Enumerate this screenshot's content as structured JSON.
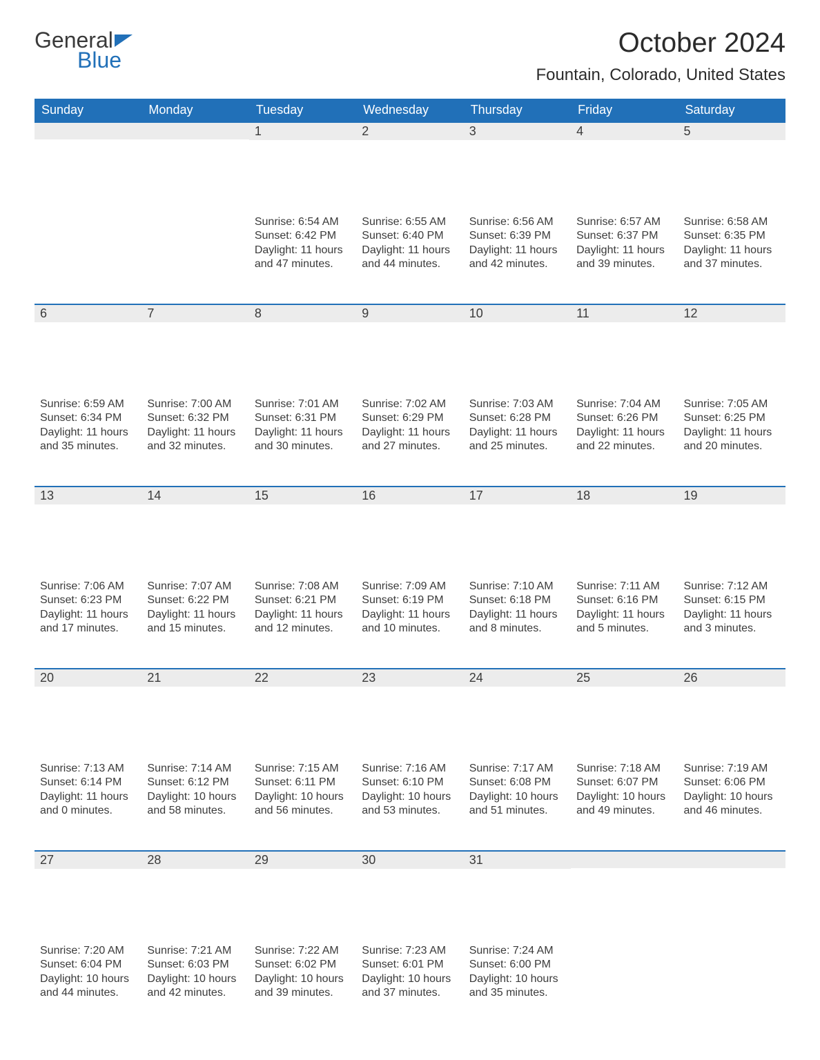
{
  "brand": {
    "word1": "General",
    "word2": "Blue"
  },
  "title": "October 2024",
  "location": "Fountain, Colorado, United States",
  "colors": {
    "header_bg": "#2170b8",
    "header_text": "#ffffff",
    "daynum_bg": "#ececec",
    "row_border": "#2170b8",
    "body_text": "#3a3a3a",
    "page_bg": "#ffffff"
  },
  "fonts": {
    "title_size": 40,
    "location_size": 24,
    "header_size": 18,
    "body_size": 16
  },
  "calendar": {
    "type": "table",
    "columns": [
      "Sunday",
      "Monday",
      "Tuesday",
      "Wednesday",
      "Thursday",
      "Friday",
      "Saturday"
    ],
    "weeks": [
      [
        null,
        null,
        {
          "day": "1",
          "sunrise": "6:54 AM",
          "sunset": "6:42 PM",
          "daylight": "11 hours and 47 minutes."
        },
        {
          "day": "2",
          "sunrise": "6:55 AM",
          "sunset": "6:40 PM",
          "daylight": "11 hours and 44 minutes."
        },
        {
          "day": "3",
          "sunrise": "6:56 AM",
          "sunset": "6:39 PM",
          "daylight": "11 hours and 42 minutes."
        },
        {
          "day": "4",
          "sunrise": "6:57 AM",
          "sunset": "6:37 PM",
          "daylight": "11 hours and 39 minutes."
        },
        {
          "day": "5",
          "sunrise": "6:58 AM",
          "sunset": "6:35 PM",
          "daylight": "11 hours and 37 minutes."
        }
      ],
      [
        {
          "day": "6",
          "sunrise": "6:59 AM",
          "sunset": "6:34 PM",
          "daylight": "11 hours and 35 minutes."
        },
        {
          "day": "7",
          "sunrise": "7:00 AM",
          "sunset": "6:32 PM",
          "daylight": "11 hours and 32 minutes."
        },
        {
          "day": "8",
          "sunrise": "7:01 AM",
          "sunset": "6:31 PM",
          "daylight": "11 hours and 30 minutes."
        },
        {
          "day": "9",
          "sunrise": "7:02 AM",
          "sunset": "6:29 PM",
          "daylight": "11 hours and 27 minutes."
        },
        {
          "day": "10",
          "sunrise": "7:03 AM",
          "sunset": "6:28 PM",
          "daylight": "11 hours and 25 minutes."
        },
        {
          "day": "11",
          "sunrise": "7:04 AM",
          "sunset": "6:26 PM",
          "daylight": "11 hours and 22 minutes."
        },
        {
          "day": "12",
          "sunrise": "7:05 AM",
          "sunset": "6:25 PM",
          "daylight": "11 hours and 20 minutes."
        }
      ],
      [
        {
          "day": "13",
          "sunrise": "7:06 AM",
          "sunset": "6:23 PM",
          "daylight": "11 hours and 17 minutes."
        },
        {
          "day": "14",
          "sunrise": "7:07 AM",
          "sunset": "6:22 PM",
          "daylight": "11 hours and 15 minutes."
        },
        {
          "day": "15",
          "sunrise": "7:08 AM",
          "sunset": "6:21 PM",
          "daylight": "11 hours and 12 minutes."
        },
        {
          "day": "16",
          "sunrise": "7:09 AM",
          "sunset": "6:19 PM",
          "daylight": "11 hours and 10 minutes."
        },
        {
          "day": "17",
          "sunrise": "7:10 AM",
          "sunset": "6:18 PM",
          "daylight": "11 hours and 8 minutes."
        },
        {
          "day": "18",
          "sunrise": "7:11 AM",
          "sunset": "6:16 PM",
          "daylight": "11 hours and 5 minutes."
        },
        {
          "day": "19",
          "sunrise": "7:12 AM",
          "sunset": "6:15 PM",
          "daylight": "11 hours and 3 minutes."
        }
      ],
      [
        {
          "day": "20",
          "sunrise": "7:13 AM",
          "sunset": "6:14 PM",
          "daylight": "11 hours and 0 minutes."
        },
        {
          "day": "21",
          "sunrise": "7:14 AM",
          "sunset": "6:12 PM",
          "daylight": "10 hours and 58 minutes."
        },
        {
          "day": "22",
          "sunrise": "7:15 AM",
          "sunset": "6:11 PM",
          "daylight": "10 hours and 56 minutes."
        },
        {
          "day": "23",
          "sunrise": "7:16 AM",
          "sunset": "6:10 PM",
          "daylight": "10 hours and 53 minutes."
        },
        {
          "day": "24",
          "sunrise": "7:17 AM",
          "sunset": "6:08 PM",
          "daylight": "10 hours and 51 minutes."
        },
        {
          "day": "25",
          "sunrise": "7:18 AM",
          "sunset": "6:07 PM",
          "daylight": "10 hours and 49 minutes."
        },
        {
          "day": "26",
          "sunrise": "7:19 AM",
          "sunset": "6:06 PM",
          "daylight": "10 hours and 46 minutes."
        }
      ],
      [
        {
          "day": "27",
          "sunrise": "7:20 AM",
          "sunset": "6:04 PM",
          "daylight": "10 hours and 44 minutes."
        },
        {
          "day": "28",
          "sunrise": "7:21 AM",
          "sunset": "6:03 PM",
          "daylight": "10 hours and 42 minutes."
        },
        {
          "day": "29",
          "sunrise": "7:22 AM",
          "sunset": "6:02 PM",
          "daylight": "10 hours and 39 minutes."
        },
        {
          "day": "30",
          "sunrise": "7:23 AM",
          "sunset": "6:01 PM",
          "daylight": "10 hours and 37 minutes."
        },
        {
          "day": "31",
          "sunrise": "7:24 AM",
          "sunset": "6:00 PM",
          "daylight": "10 hours and 35 minutes."
        },
        null,
        null
      ]
    ],
    "labels": {
      "sunrise_prefix": "Sunrise: ",
      "sunset_prefix": "Sunset: ",
      "daylight_prefix": "Daylight: "
    }
  }
}
